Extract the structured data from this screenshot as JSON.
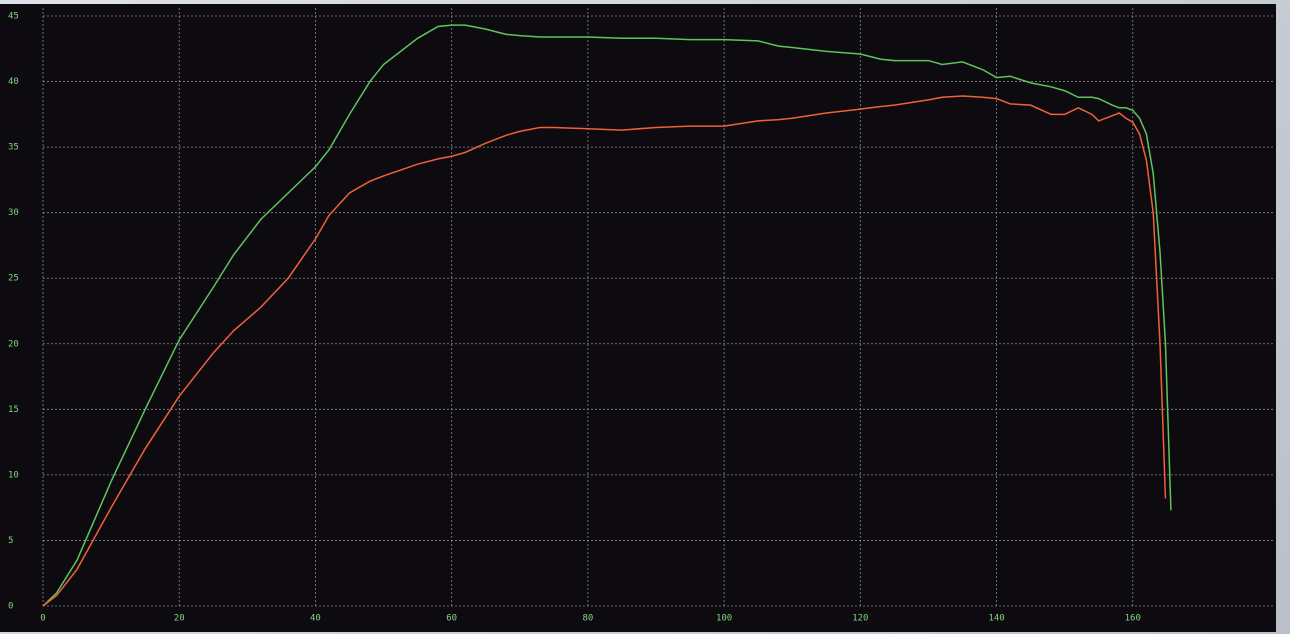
{
  "chart_data": {
    "type": "line",
    "x": [
      0,
      2,
      5,
      10,
      15,
      20,
      25,
      28,
      32,
      36,
      40,
      42,
      45,
      48,
      50,
      55,
      58,
      60,
      62,
      65,
      68,
      70,
      73,
      75,
      80,
      85,
      90,
      95,
      100,
      105,
      108,
      110,
      115,
      120,
      123,
      125,
      130,
      132,
      135,
      138,
      140,
      142,
      145,
      148,
      150,
      152,
      154,
      155,
      157,
      158,
      159,
      160,
      161,
      162,
      163,
      164,
      164.8,
      165.6
    ],
    "series": [
      {
        "color": "#5ec45e",
        "values": [
          0,
          1,
          3.5,
          9.5,
          15,
          20.3,
          24.3,
          26.8,
          29.5,
          31.5,
          33.5,
          34.8,
          37.5,
          40,
          41.3,
          43.3,
          44.2,
          44.3,
          44.3,
          44,
          43.6,
          43.5,
          43.4,
          43.4,
          43.4,
          43.3,
          43.3,
          43.2,
          43.2,
          43.1,
          42.7,
          42.6,
          42.3,
          42.1,
          41.7,
          41.6,
          41.6,
          41.3,
          41.5,
          40.9,
          40.3,
          40.4,
          39.9,
          39.6,
          39.3,
          38.8,
          38.8,
          38.7,
          38.2,
          38,
          38,
          37.8,
          37.2,
          36,
          33,
          27,
          20,
          7.3
        ]
      },
      {
        "color": "#f0603a",
        "values": [
          0,
          0.8,
          2.8,
          7.5,
          12,
          16,
          19.3,
          21,
          22.8,
          25,
          28,
          29.8,
          31.5,
          32.4,
          32.8,
          33.7,
          34.1,
          34.3,
          34.6,
          35.3,
          35.9,
          36.2,
          36.5,
          36.5,
          36.4,
          36.3,
          36.5,
          36.6,
          36.6,
          37,
          37.1,
          37.2,
          37.6,
          37.9,
          38.1,
          38.2,
          38.6,
          38.8,
          38.9,
          38.8,
          38.7,
          38.3,
          38.2,
          37.5,
          37.5,
          38,
          37.5,
          37,
          37.4,
          37.6,
          37.2,
          36.9,
          36,
          34,
          30,
          20,
          8.2,
          null
        ]
      }
    ],
    "xlim": [
      0,
      180
    ],
    "xticks": [
      0,
      20,
      40,
      60,
      80,
      100,
      120,
      140,
      160
    ],
    "ylim": [
      0,
      45
    ],
    "yticks": [
      0,
      5,
      10,
      15,
      20,
      25,
      30,
      35,
      40,
      45
    ],
    "grid": true
  }
}
